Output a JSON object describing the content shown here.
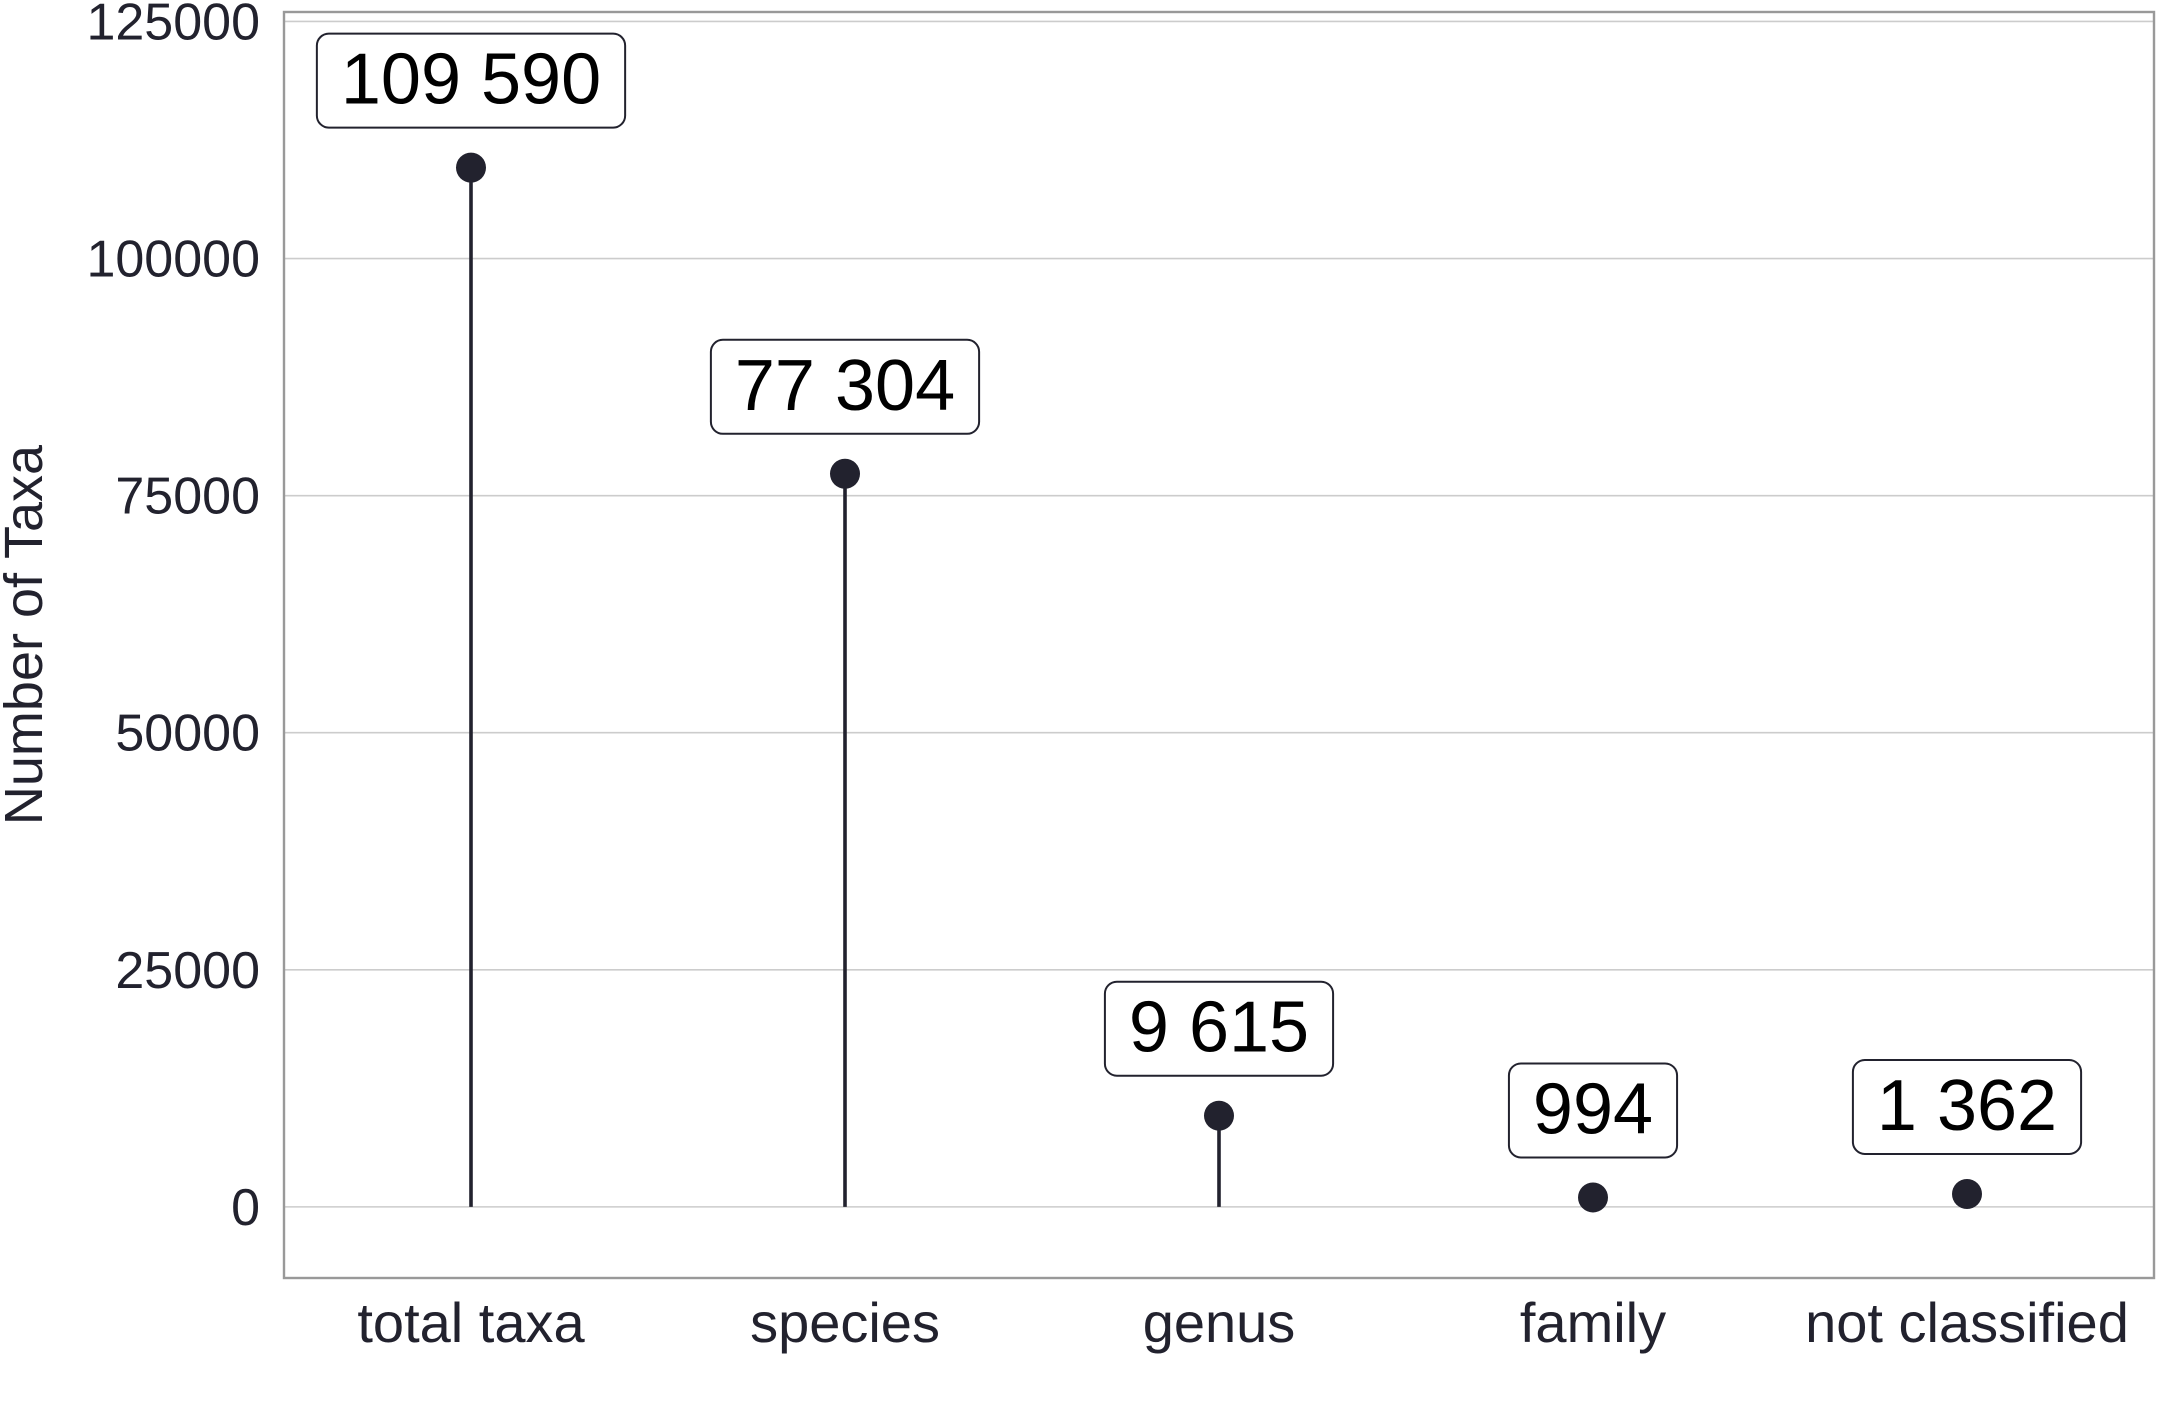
{
  "chart_data": {
    "type": "lollipop",
    "categories": [
      "total taxa",
      "species",
      "genus",
      "family",
      "not classified"
    ],
    "values": [
      109590,
      77304,
      9615,
      994,
      1362
    ],
    "value_labels": [
      "109 590",
      "77 304",
      "9 615",
      "994",
      "1 362"
    ],
    "title": "",
    "xlabel": "",
    "ylabel": "Number of Taxa",
    "ylim": [
      -7500,
      126000
    ],
    "yticks": [
      0,
      25000,
      50000,
      75000,
      100000,
      125000
    ],
    "ytick_labels": [
      "0",
      "25000",
      "50000",
      "75000",
      "100000",
      "125000"
    ],
    "grid": true,
    "legend": "none",
    "colors": {
      "marker": "#22222e",
      "grid": "#cccccc",
      "text": "#22222e",
      "frame": "#999999"
    }
  }
}
